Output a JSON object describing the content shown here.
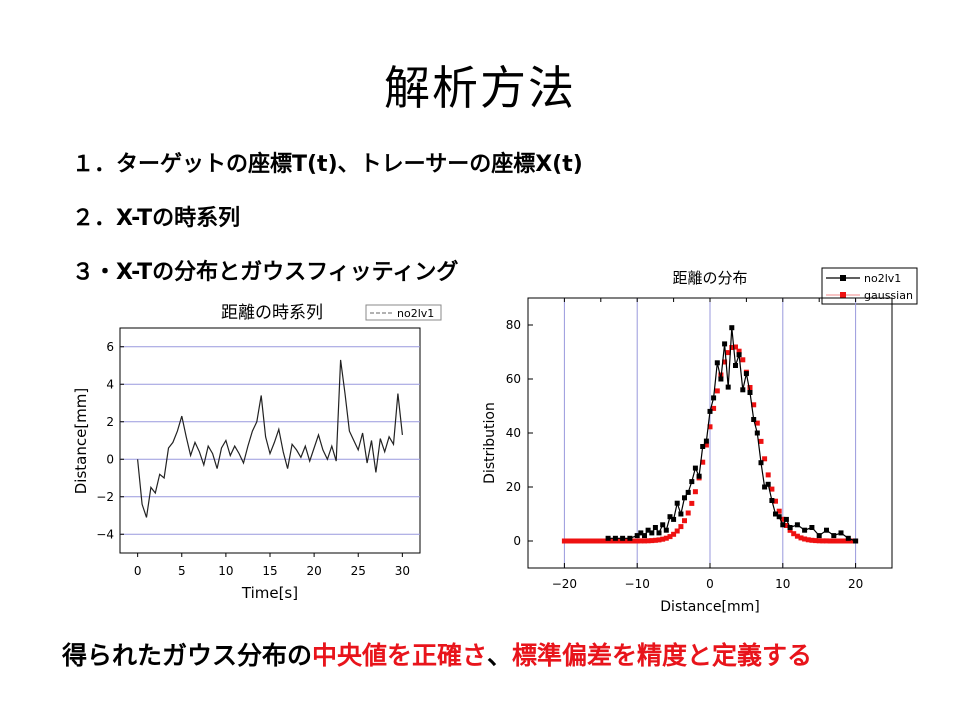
{
  "slide": {
    "title": "解析方法",
    "steps": [
      {
        "num": "１．",
        "text": "ターゲットの座標T(t)、トレーサーの座標X(t)"
      },
      {
        "num": "２．",
        "text": "X-Tの時系列"
      },
      {
        "num": "３・",
        "text": "X-Tの分布とガウスフィッティング"
      }
    ],
    "conclusion": {
      "pre": "得られたガウス分布の",
      "hl1": "中央値を正確さ",
      "mid": "、",
      "hl2": "標準偏差を精度と定義する"
    },
    "highlight_color": "#e8141b"
  },
  "chart_data": [
    {
      "type": "line",
      "title": "距離の時系列",
      "xlabel": "Time[s]",
      "ylabel": "Distance[mm]",
      "xlim": [
        -2,
        32
      ],
      "ylim": [
        -5,
        7
      ],
      "xticks": [
        0,
        5,
        10,
        15,
        20,
        25,
        30
      ],
      "yticks": [
        -4,
        -2,
        0,
        2,
        4,
        6
      ],
      "grid": "horizontal",
      "legend": "top-right",
      "series": [
        {
          "name": "no2lv1",
          "color": "#222222",
          "x": [
            0,
            0.5,
            1,
            1.5,
            2,
            2.5,
            3,
            3.5,
            4,
            4.5,
            5,
            5.5,
            6,
            6.5,
            7,
            7.5,
            8,
            8.5,
            9,
            9.5,
            10,
            10.5,
            11,
            11.5,
            12,
            12.5,
            13,
            13.5,
            14,
            14.5,
            15,
            15.5,
            16,
            16.5,
            17,
            17.5,
            18,
            18.5,
            19,
            19.5,
            20,
            20.5,
            21,
            21.5,
            22,
            22.5,
            23,
            23.5,
            24,
            24.5,
            25,
            25.5,
            26,
            26.5,
            27,
            27.5,
            28,
            28.5,
            29,
            29.5,
            30
          ],
          "y": [
            0,
            -2.4,
            -3.1,
            -1.5,
            -1.8,
            -0.8,
            -1.0,
            0.6,
            0.9,
            1.5,
            2.3,
            1.2,
            0.2,
            0.9,
            0.4,
            -0.3,
            0.7,
            0.3,
            -0.5,
            0.6,
            1.0,
            0.2,
            0.7,
            0.3,
            -0.2,
            0.7,
            1.5,
            2.0,
            3.4,
            1.2,
            0.3,
            0.9,
            1.6,
            0.4,
            -0.5,
            0.8,
            0.5,
            0.1,
            0.7,
            -0.1,
            0.6,
            1.3,
            0.5,
            0.0,
            0.7,
            -0.1,
            5.3,
            3.5,
            1.5,
            1.0,
            0.5,
            1.4,
            -0.2,
            1.0,
            -0.7,
            1.1,
            0.4,
            1.2,
            0.8,
            3.5,
            1.3
          ]
        }
      ]
    },
    {
      "type": "line",
      "title": "距離の分布",
      "xlabel": "Distance[mm]",
      "ylabel": "Distribution",
      "xlim": [
        -25,
        25
      ],
      "ylim": [
        -10,
        90
      ],
      "xticks": [
        -20,
        -10,
        0,
        10,
        20
      ],
      "yticks": [
        0,
        20,
        40,
        60,
        80
      ],
      "grid": "vertical",
      "legend": "top-right",
      "series": [
        {
          "name": "no2lv1",
          "color": "#000000",
          "marker": "square",
          "x": [
            -14,
            -13,
            -12,
            -11,
            -10,
            -9.5,
            -9,
            -8.5,
            -8,
            -7.5,
            -7,
            -6.5,
            -6,
            -5.5,
            -5,
            -4.5,
            -4,
            -3.5,
            -3,
            -2.5,
            -2,
            -1.5,
            -1,
            -0.5,
            0,
            0.5,
            1,
            1.5,
            2,
            2.5,
            3,
            3.5,
            4,
            4.5,
            5,
            5.5,
            6,
            6.5,
            7,
            7.5,
            8,
            8.5,
            9,
            9.5,
            10,
            10.5,
            11,
            12,
            13,
            14,
            15,
            16,
            17,
            18,
            19,
            20
          ],
          "y": [
            1,
            1,
            1,
            1,
            2,
            3,
            2,
            4,
            3,
            5,
            3,
            6,
            4,
            9,
            8,
            14,
            10,
            16,
            18,
            22,
            27,
            24,
            35,
            37,
            48,
            53,
            66,
            60,
            73,
            57,
            79,
            65,
            69,
            56,
            62,
            55,
            45,
            40,
            29,
            20,
            21,
            15,
            10,
            9,
            6,
            8,
            5,
            6,
            4,
            5,
            2,
            4,
            2,
            3,
            1,
            0
          ]
        },
        {
          "name": "gaussian",
          "color": "#ee1111",
          "marker": "square",
          "mean": 3.3,
          "sigma": 3.2,
          "amplitude": 72
        }
      ]
    }
  ]
}
